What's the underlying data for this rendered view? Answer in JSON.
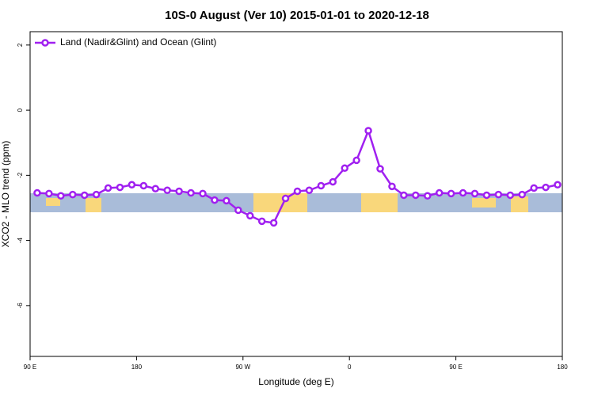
{
  "chart_data": {
    "type": "line",
    "title": "10S-0 August (Ver 10)   2015-01-01 to 2020-12-18",
    "x_label": "Longitude (deg E)",
    "y_label": "XCO2 - MLO trend (ppm)",
    "xlim": [
      90,
      540
    ],
    "xticks": [
      {
        "value": 90,
        "label": "90 E"
      },
      180,
      {
        "value": 270,
        "label": "90 W"
      },
      {
        "value": 360,
        "label": "0"
      },
      {
        "value": 450,
        "label": "90 E"
      },
      {
        "value": 540,
        "label": "180"
      }
    ],
    "ylim": [
      -7.56,
      2.41
    ],
    "yticks": [
      2,
      0,
      -2,
      -4,
      -6
    ],
    "legend": "top-left",
    "x": [
      96,
      106,
      116,
      126,
      136,
      146,
      156,
      166,
      176,
      186,
      196,
      206,
      216,
      226,
      236,
      246,
      256,
      266,
      276,
      286,
      296,
      306,
      316,
      326,
      336,
      346,
      356,
      366,
      376,
      386,
      396,
      406,
      416,
      426,
      436,
      446,
      456,
      466,
      476,
      486,
      496,
      506,
      516,
      526,
      536
    ],
    "series": [
      {
        "name": "Land (Nadir&Glint) and Ocean (Glint)",
        "color": "#a020f0",
        "values": [
          -2.54,
          -2.56,
          -2.63,
          -2.59,
          -2.61,
          -2.59,
          -2.39,
          -2.37,
          -2.29,
          -2.32,
          -2.41,
          -2.46,
          -2.49,
          -2.54,
          -2.56,
          -2.76,
          -2.78,
          -3.07,
          -3.24,
          -3.41,
          -3.46,
          -2.71,
          -2.49,
          -2.46,
          -2.32,
          -2.2,
          -1.78,
          -1.54,
          -0.63,
          -1.8,
          -2.34,
          -2.61,
          -2.61,
          -2.63,
          -2.54,
          -2.56,
          -2.54,
          -2.56,
          -2.61,
          -2.59,
          -2.61,
          -2.59,
          -2.39,
          -2.37,
          -2.29
        ]
      }
    ]
  }
}
